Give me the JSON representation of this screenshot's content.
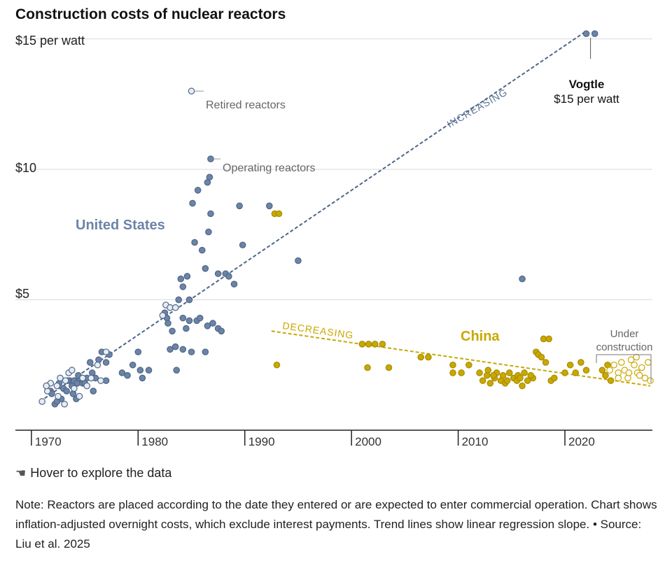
{
  "title": "Construction costs of nuclear reactors",
  "hover_text": "Hover to explore the data",
  "note_text": "Note: Reactors are placed according to the date they entered or are expected to enter commercial operation. Chart shows inflation-adjusted overnight costs, which exclude interest payments. Trend lines show linear regression slope.",
  "source_separator": "•",
  "source_text": "Source: Liu et al. 2025",
  "colors": {
    "us": "#6b84a7",
    "us_stroke": "#4f6687",
    "china": "#c9a800",
    "gridline": "#d9d9d9",
    "axis": "#222222"
  },
  "icons": {
    "hover": "pointing-hand-icon"
  },
  "chart_data": {
    "type": "scatter",
    "x_ticks": [
      "1970",
      "1980",
      "1990",
      "2000",
      "2010",
      "2020"
    ],
    "y_ticks": [
      "$15 per watt",
      "$10",
      "$5"
    ],
    "xlim": [
      1968.5,
      2028.2
    ],
    "ylim": [
      0,
      15.5
    ],
    "grid": true,
    "annotations": {
      "retired": "Retired reactors",
      "operating": "Operating reactors",
      "us_label": "United States",
      "china_label": "China",
      "vogtle_name": "Vogtle",
      "vogtle_value": "$15 per watt",
      "under_construction_1": "Under",
      "under_construction_2": "construction",
      "increasing": "INCREASING",
      "decreasing": "DECREASING"
    },
    "trend_lines": [
      {
        "name": "us",
        "x": [
          1970.8,
          2022.0
        ],
        "y": [
          1.1,
          15.3
        ]
      },
      {
        "name": "china",
        "x": [
          1992.5,
          2028.0
        ],
        "y": [
          3.8,
          1.7
        ]
      }
    ],
    "series": [
      {
        "name": "United States",
        "status": "operating",
        "points": [
          [
            1971.8,
            1.5
          ],
          [
            1972.2,
            1.0
          ],
          [
            1972.6,
            1.8
          ],
          [
            1972.8,
            1.2
          ],
          [
            1973.0,
            1.6
          ],
          [
            1973.3,
            1.5
          ],
          [
            1973.6,
            1.9
          ],
          [
            1973.8,
            1.7
          ],
          [
            1974.0,
            1.9
          ],
          [
            1974.3,
            1.8
          ],
          [
            1974.5,
            2.0
          ],
          [
            1974.8,
            1.8
          ],
          [
            1975.2,
            2.0
          ],
          [
            1975.5,
            2.6
          ],
          [
            1975.7,
            2.2
          ],
          [
            1975.8,
            1.5
          ],
          [
            1976.0,
            2.0
          ],
          [
            1976.3,
            2.7
          ],
          [
            1976.6,
            3.0
          ],
          [
            1977.0,
            2.6
          ],
          [
            1977.3,
            2.9
          ],
          [
            1977.0,
            1.9
          ],
          [
            1978.5,
            2.2
          ],
          [
            1979.0,
            2.1
          ],
          [
            1979.5,
            2.5
          ],
          [
            1980.0,
            3.0
          ],
          [
            1980.4,
            2.0
          ],
          [
            1980.2,
            2.3
          ],
          [
            1981.0,
            2.3
          ],
          [
            1982.5,
            4.5
          ],
          [
            1982.7,
            4.3
          ],
          [
            1982.8,
            4.1
          ],
          [
            1983.2,
            3.8
          ],
          [
            1983.5,
            3.2
          ],
          [
            1983.8,
            5.0
          ],
          [
            1984.2,
            4.3
          ],
          [
            1984.5,
            3.9
          ],
          [
            1984.8,
            4.2
          ],
          [
            1984.0,
            5.8
          ],
          [
            1984.6,
            5.9
          ],
          [
            1984.2,
            5.5
          ],
          [
            1984.8,
            5.0
          ],
          [
            1985.3,
            7.2
          ],
          [
            1985.5,
            4.2
          ],
          [
            1985.8,
            4.3
          ],
          [
            1985.1,
            8.7
          ],
          [
            1985.6,
            9.2
          ],
          [
            1986.0,
            6.9
          ],
          [
            1986.3,
            6.2
          ],
          [
            1986.7,
            9.7
          ],
          [
            1986.5,
            9.5
          ],
          [
            1986.5,
            4.0
          ],
          [
            1987.0,
            4.1
          ],
          [
            1986.8,
            8.3
          ],
          [
            1986.6,
            7.6
          ],
          [
            1987.5,
            6.0
          ],
          [
            1987.5,
            3.9
          ],
          [
            1987.8,
            3.8
          ],
          [
            1988.2,
            6.0
          ],
          [
            1988.5,
            5.9
          ],
          [
            1989.0,
            5.6
          ],
          [
            1989.5,
            8.6
          ],
          [
            1989.8,
            7.1
          ],
          [
            1992.3,
            8.6
          ],
          [
            1995.0,
            6.5
          ],
          [
            1983.0,
            3.1
          ],
          [
            1984.2,
            3.1
          ],
          [
            1985.0,
            3.0
          ],
          [
            1986.3,
            3.0
          ],
          [
            1983.6,
            2.3
          ],
          [
            2016.0,
            5.8
          ],
          [
            2022.0,
            15.2
          ],
          [
            2022.8,
            15.2
          ],
          [
            1975.0,
            1.8
          ],
          [
            1974.4,
            2.1
          ],
          [
            1973.4,
            1.9
          ],
          [
            1973.9,
            1.4
          ],
          [
            1974.2,
            1.2
          ],
          [
            1972.4,
            1.1
          ],
          [
            1971.9,
            1.4
          ]
        ]
      },
      {
        "name": "United States",
        "status": "retired",
        "points": [
          [
            1971.0,
            1.1
          ],
          [
            1971.5,
            1.5
          ],
          [
            1971.8,
            1.8
          ],
          [
            1972.4,
            1.7
          ],
          [
            1972.7,
            2.0
          ],
          [
            1973.2,
            1.9
          ],
          [
            1973.5,
            2.2
          ],
          [
            1973.8,
            2.3
          ],
          [
            1974.0,
            1.6
          ],
          [
            1974.5,
            1.3
          ],
          [
            1974.8,
            2.0
          ],
          [
            1975.2,
            1.7
          ],
          [
            1975.6,
            2.0
          ],
          [
            1976.2,
            2.5
          ],
          [
            1977.0,
            3.0
          ],
          [
            1982.6,
            4.8
          ],
          [
            1983.0,
            4.7
          ],
          [
            1983.5,
            4.7
          ],
          [
            1972.5,
            1.3
          ],
          [
            1973.1,
            1.0
          ],
          [
            1971.4,
            1.7
          ],
          [
            1976.5,
            1.9
          ],
          [
            1982.3,
            4.4
          ],
          [
            1985.0,
            13.0
          ]
        ]
      },
      {
        "name": "China",
        "status": "operating",
        "points": [
          [
            1992.8,
            8.3
          ],
          [
            1993.2,
            8.3
          ],
          [
            1993.0,
            2.5
          ],
          [
            2001.0,
            3.3
          ],
          [
            2001.6,
            3.3
          ],
          [
            2002.2,
            3.3
          ],
          [
            2002.9,
            3.3
          ],
          [
            2001.5,
            2.4
          ],
          [
            2003.5,
            2.4
          ],
          [
            2006.5,
            2.8
          ],
          [
            2007.2,
            2.8
          ],
          [
            2009.5,
            2.5
          ],
          [
            2010.3,
            2.2
          ],
          [
            2011.0,
            2.5
          ],
          [
            2012.0,
            2.2
          ],
          [
            2012.7,
            2.1
          ],
          [
            2013.0,
            1.8
          ],
          [
            2013.4,
            2.0
          ],
          [
            2013.6,
            2.2
          ],
          [
            2014.0,
            1.9
          ],
          [
            2014.4,
            1.8
          ],
          [
            2014.8,
            2.2
          ],
          [
            2015.2,
            2.0
          ],
          [
            2015.6,
            2.1
          ],
          [
            2016.0,
            1.7
          ],
          [
            2016.5,
            1.9
          ],
          [
            2017.0,
            2.0
          ],
          [
            2017.3,
            3.0
          ],
          [
            2017.5,
            2.9
          ],
          [
            2018.0,
            3.5
          ],
          [
            2018.5,
            3.5
          ],
          [
            2018.7,
            1.9
          ],
          [
            2020.0,
            2.2
          ],
          [
            2020.5,
            2.5
          ],
          [
            2021.0,
            2.2
          ],
          [
            2021.5,
            2.6
          ],
          [
            2022.0,
            2.3
          ],
          [
            2009.5,
            2.2
          ],
          [
            2012.3,
            1.9
          ],
          [
            2014.2,
            2.1
          ],
          [
            2015.5,
            1.9
          ],
          [
            2016.8,
            2.1
          ],
          [
            2017.8,
            2.8
          ],
          [
            2019.0,
            2.0
          ],
          [
            2023.5,
            2.3
          ],
          [
            2023.8,
            2.1
          ],
          [
            2024.0,
            2.5
          ],
          [
            2024.3,
            1.9
          ],
          [
            2013.3,
            2.1
          ],
          [
            2014.6,
            1.9
          ],
          [
            2015.8,
            2.0
          ],
          [
            2016.2,
            2.2
          ],
          [
            2018.2,
            2.6
          ],
          [
            2012.8,
            2.3
          ]
        ]
      },
      {
        "name": "China",
        "status": "under construction",
        "points": [
          [
            2024.2,
            2.3
          ],
          [
            2024.6,
            2.5
          ],
          [
            2025.0,
            2.2
          ],
          [
            2025.3,
            2.6
          ],
          [
            2025.6,
            2.3
          ],
          [
            2025.9,
            2.0
          ],
          [
            2026.2,
            2.7
          ],
          [
            2026.5,
            2.5
          ],
          [
            2026.8,
            2.2
          ],
          [
            2027.2,
            2.4
          ],
          [
            2027.5,
            2.0
          ],
          [
            2027.8,
            2.6
          ],
          [
            2028.0,
            1.9
          ],
          [
            2026.0,
            2.2
          ],
          [
            2025.0,
            2.0
          ],
          [
            2026.7,
            2.8
          ],
          [
            2027.0,
            2.1
          ]
        ]
      }
    ]
  }
}
